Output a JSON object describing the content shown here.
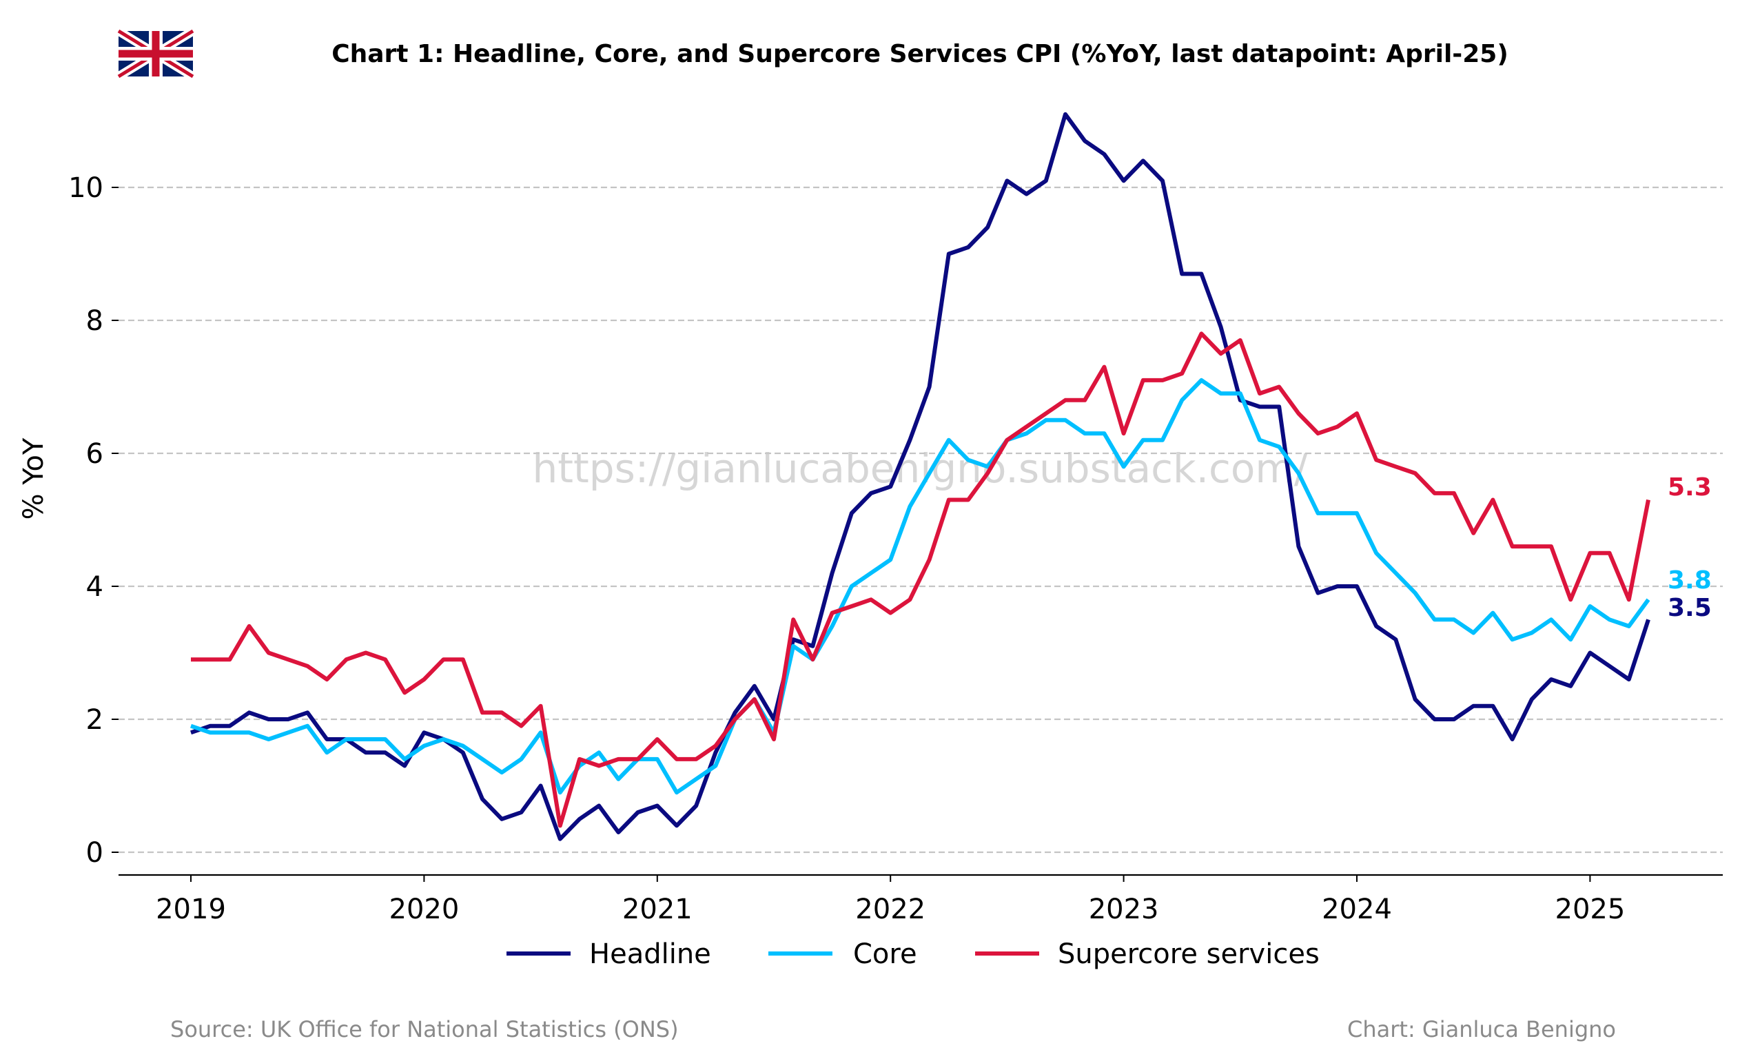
{
  "chart_data": {
    "type": "line",
    "title": "Chart 1: Headline, Core, and Supercore Services CPI (%YoY, last datapoint: April-25)",
    "ylabel": "% YoY",
    "xlabel": "",
    "ylim": [
      -0.35,
      11.2
    ],
    "yticks": [
      0,
      2,
      4,
      6,
      8,
      10
    ],
    "xticks": [
      "2019",
      "2020",
      "2021",
      "2022",
      "2023",
      "2024",
      "2025"
    ],
    "grid": "horizontal dashed",
    "legend_position": "bottom-center",
    "x_start": "2019-01",
    "x_end": "2025-04",
    "series": [
      {
        "name": "Headline",
        "color": "#0a0a80",
        "last_label": "3.5",
        "values": [
          1.8,
          1.9,
          1.9,
          2.1,
          2.0,
          2.0,
          2.1,
          1.7,
          1.7,
          1.5,
          1.5,
          1.3,
          1.8,
          1.7,
          1.5,
          0.8,
          0.5,
          0.6,
          1.0,
          0.2,
          0.5,
          0.7,
          0.3,
          0.6,
          0.7,
          0.4,
          0.7,
          1.5,
          2.1,
          2.5,
          2.0,
          3.2,
          3.1,
          4.2,
          5.1,
          5.4,
          5.5,
          6.2,
          7.0,
          9.0,
          9.1,
          9.4,
          10.1,
          9.9,
          10.1,
          11.1,
          10.7,
          10.5,
          10.1,
          10.4,
          10.1,
          8.7,
          8.7,
          7.9,
          6.8,
          6.7,
          6.7,
          4.6,
          3.9,
          4.0,
          4.0,
          3.4,
          3.2,
          2.3,
          2.0,
          2.0,
          2.2,
          2.2,
          1.7,
          2.3,
          2.6,
          2.5,
          3.0,
          2.8,
          2.6,
          3.5
        ]
      },
      {
        "name": "Core",
        "color": "#00bfff",
        "last_label": "3.8",
        "values": [
          1.9,
          1.8,
          1.8,
          1.8,
          1.7,
          1.8,
          1.9,
          1.5,
          1.7,
          1.7,
          1.7,
          1.4,
          1.6,
          1.7,
          1.6,
          1.4,
          1.2,
          1.4,
          1.8,
          0.9,
          1.3,
          1.5,
          1.1,
          1.4,
          1.4,
          0.9,
          1.1,
          1.3,
          2.0,
          2.3,
          1.8,
          3.1,
          2.9,
          3.4,
          4.0,
          4.2,
          4.4,
          5.2,
          5.7,
          6.2,
          5.9,
          5.8,
          6.2,
          6.3,
          6.5,
          6.5,
          6.3,
          6.3,
          5.8,
          6.2,
          6.2,
          6.8,
          7.1,
          6.9,
          6.9,
          6.2,
          6.1,
          5.7,
          5.1,
          5.1,
          5.1,
          4.5,
          4.2,
          3.9,
          3.5,
          3.5,
          3.3,
          3.6,
          3.2,
          3.3,
          3.5,
          3.2,
          3.7,
          3.5,
          3.4,
          3.8
        ]
      },
      {
        "name": "Supercore services",
        "color": "#dc143c",
        "last_label": "5.3",
        "values": [
          2.9,
          2.9,
          2.9,
          3.4,
          3.0,
          2.9,
          2.8,
          2.6,
          2.9,
          3.0,
          2.9,
          2.4,
          2.6,
          2.9,
          2.9,
          2.1,
          2.1,
          1.9,
          2.2,
          0.4,
          1.4,
          1.3,
          1.4,
          1.4,
          1.7,
          1.4,
          1.4,
          1.6,
          2.0,
          2.3,
          1.7,
          3.5,
          2.9,
          3.6,
          3.7,
          3.8,
          3.6,
          3.8,
          4.4,
          5.3,
          5.3,
          5.7,
          6.2,
          6.4,
          6.6,
          6.8,
          6.8,
          7.3,
          6.3,
          7.1,
          7.1,
          7.2,
          7.8,
          7.5,
          7.7,
          6.9,
          7.0,
          6.6,
          6.3,
          6.4,
          6.6,
          5.9,
          5.8,
          5.7,
          5.4,
          5.4,
          4.8,
          5.3,
          4.6,
          4.6,
          4.6,
          3.8,
          4.5,
          4.5,
          3.8,
          5.3
        ]
      }
    ]
  },
  "watermark": "https://gianlucabenigno.substack.com/",
  "footer": {
    "source": "Source: UK Office for National Statistics (ONS)",
    "credit": "Chart: Gianluca Benigno"
  },
  "flag_icon": "uk-flag-icon"
}
